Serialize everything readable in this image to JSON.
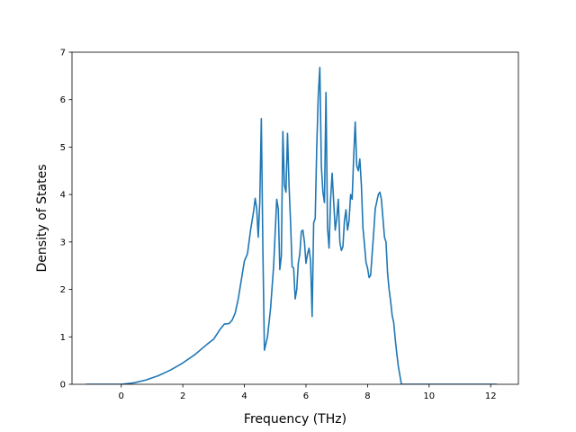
{
  "chart_data": {
    "type": "line",
    "title": "",
    "xlabel": "Frequency (THz)",
    "ylabel": "Density of States",
    "xlim": [
      -1.6,
      12.9
    ],
    "ylim": [
      0,
      7
    ],
    "xticks": [
      0,
      2,
      4,
      6,
      8,
      10,
      12
    ],
    "yticks": [
      0,
      1,
      2,
      3,
      4,
      5,
      6,
      7
    ],
    "xtick_labels": [
      "0",
      "2",
      "4",
      "6",
      "8",
      "10",
      "12"
    ],
    "ytick_labels": [
      "0",
      "1",
      "2",
      "3",
      "4",
      "5",
      "6",
      "7"
    ],
    "grid": false,
    "legend": "none",
    "colors": {
      "line": "#1f77b4",
      "axes": "#000000"
    },
    "series": [
      {
        "x": [
          -1.15,
          0,
          0.4,
          0.8,
          1.2,
          1.6,
          2.0,
          2.4,
          2.8,
          3.0,
          3.2,
          3.35,
          3.5,
          3.6,
          3.7,
          3.8,
          3.9,
          4.0,
          4.1,
          4.2,
          4.3,
          4.35,
          4.4,
          4.45,
          4.5,
          4.55,
          4.6,
          4.65,
          4.75,
          4.85,
          4.95,
          5.05,
          5.1,
          5.15,
          5.2,
          5.25,
          5.3,
          5.35,
          5.4,
          5.45,
          5.5,
          5.55,
          5.6,
          5.65,
          5.7,
          5.75,
          5.8,
          5.85,
          5.9,
          5.95,
          6.0,
          6.05,
          6.1,
          6.15,
          6.2,
          6.25,
          6.3,
          6.35,
          6.4,
          6.45,
          6.5,
          6.55,
          6.6,
          6.65,
          6.7,
          6.75,
          6.8,
          6.85,
          6.9,
          6.95,
          7.0,
          7.05,
          7.1,
          7.15,
          7.2,
          7.25,
          7.3,
          7.35,
          7.4,
          7.45,
          7.5,
          7.55,
          7.6,
          7.65,
          7.7,
          7.75,
          7.8,
          7.85,
          7.9,
          7.95,
          8.0,
          8.05,
          8.1,
          8.15,
          8.2,
          8.25,
          8.3,
          8.35,
          8.4,
          8.45,
          8.5,
          8.55,
          8.6,
          8.65,
          8.7,
          8.75,
          8.8,
          8.85,
          8.9,
          8.95,
          9.0,
          9.1,
          9.2,
          9.3,
          9.4,
          9.45,
          9.5,
          9.55,
          9.6,
          9.65,
          9.7,
          9.8,
          9.9,
          10.0,
          10.1,
          10.2,
          10.4,
          10.6,
          10.8,
          11.0,
          11.1,
          11.15,
          11.2,
          11.5,
          11.9,
          12.2
        ],
        "y": [
          0.0,
          0.0,
          0.03,
          0.09,
          0.18,
          0.3,
          0.45,
          0.63,
          0.85,
          0.95,
          1.15,
          1.27,
          1.28,
          1.35,
          1.5,
          1.8,
          2.2,
          2.6,
          2.75,
          3.25,
          3.65,
          3.92,
          3.7,
          3.1,
          3.85,
          5.6,
          2.85,
          0.72,
          1.0,
          1.6,
          2.5,
          3.9,
          3.7,
          2.42,
          2.7,
          5.33,
          4.2,
          4.05,
          5.29,
          4.2,
          3.4,
          2.48,
          2.45,
          1.8,
          2.0,
          2.55,
          2.75,
          3.22,
          3.25,
          3.0,
          2.55,
          2.75,
          2.87,
          2.6,
          1.43,
          3.4,
          3.5,
          5.0,
          6.1,
          6.68,
          4.6,
          4.05,
          3.83,
          6.15,
          3.3,
          2.87,
          3.9,
          4.45,
          3.85,
          3.25,
          3.5,
          3.9,
          3.0,
          2.82,
          2.9,
          3.45,
          3.68,
          3.25,
          3.45,
          4.0,
          3.9,
          4.8,
          5.53,
          4.6,
          4.5,
          4.75,
          4.2,
          3.3,
          2.95,
          2.57,
          2.45,
          2.25,
          2.3,
          2.75,
          3.2,
          3.7,
          3.85,
          4.0,
          4.05,
          3.9,
          3.5,
          3.1,
          3.0,
          2.35,
          2.0,
          1.75,
          1.45,
          1.3,
          0.95,
          0.65,
          0.38,
          0.0,
          0.0,
          0.0,
          0.0,
          0.0,
          0.0,
          0.0,
          0.0,
          0.0,
          0.0,
          0.0,
          0.0,
          0.0,
          0.0,
          0.0,
          0.0,
          0.0,
          0.0,
          0.0,
          0.0,
          0.0,
          0.0,
          0.0,
          0.0,
          0.0
        ]
      }
    ]
  }
}
